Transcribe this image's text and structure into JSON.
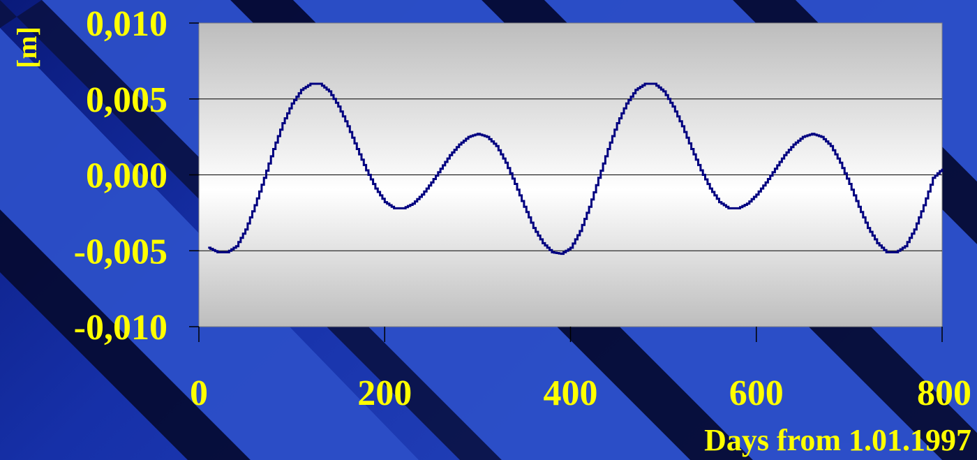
{
  "chart_data": {
    "type": "line",
    "title": "",
    "ylabel": "[m]",
    "xlabel": "Days from 1.01.1997",
    "xlim": [
      0,
      800
    ],
    "ylim": [
      -0.01,
      0.01
    ],
    "x_ticks": [
      0,
      200,
      400,
      600,
      800
    ],
    "x_tick_labels": [
      "0",
      "200",
      "400",
      "600",
      "800"
    ],
    "y_ticks": [
      0.01,
      0.005,
      0,
      -0.005,
      -0.01
    ],
    "y_tick_labels": [
      "0,010",
      "0,005",
      "0,000",
      "-0,005",
      "-0,010"
    ],
    "grid": true,
    "series": [
      {
        "x": [
          10,
          20,
          30,
          40,
          50,
          60,
          70,
          80,
          90,
          100,
          110,
          120,
          130,
          140,
          150,
          160,
          170,
          180,
          190,
          200,
          210,
          220,
          230,
          240,
          250,
          260,
          270,
          280,
          290,
          300,
          310,
          320,
          330,
          340,
          350,
          360,
          370,
          380,
          390,
          400,
          410,
          420,
          430,
          440,
          450,
          460,
          470,
          480,
          490,
          500,
          510,
          520,
          530,
          540,
          550,
          560,
          570,
          580,
          590,
          600,
          610,
          620,
          630,
          640,
          650,
          660,
          670,
          680,
          690,
          700,
          710,
          720,
          730,
          740,
          750,
          760,
          770,
          780,
          790,
          800
        ],
        "y": [
          -0.0048,
          -0.0051,
          -0.0051,
          -0.0047,
          -0.0036,
          -0.002,
          -0.0002,
          0.0017,
          0.0034,
          0.0047,
          0.0056,
          0.006,
          0.006,
          0.0055,
          0.0045,
          0.0032,
          0.0017,
          0.0003,
          -0.0009,
          -0.0018,
          -0.0022,
          -0.0022,
          -0.0019,
          -0.0013,
          -0.0005,
          0.0004,
          0.0013,
          0.002,
          0.0025,
          0.0027,
          0.0025,
          0.0019,
          0.0008,
          -0.0006,
          -0.0021,
          -0.0035,
          -0.0045,
          -0.0051,
          -0.0052,
          -0.0048,
          -0.0037,
          -0.0021,
          -0.0002,
          0.0017,
          0.0034,
          0.0047,
          0.0056,
          0.006,
          0.006,
          0.0055,
          0.0045,
          0.0032,
          0.0017,
          0.0003,
          -0.0009,
          -0.0018,
          -0.0022,
          -0.0022,
          -0.0019,
          -0.0013,
          -0.0005,
          0.0004,
          0.0013,
          0.002,
          0.0025,
          0.0027,
          0.0025,
          0.0019,
          0.0008,
          -0.0006,
          -0.0021,
          -0.0035,
          -0.0045,
          -0.0051,
          -0.0051,
          -0.0047,
          -0.0036,
          -0.002,
          -0.0002,
          0.0004
        ],
        "color": "#000080"
      }
    ],
    "colors": {
      "label_text": "#ffff00",
      "line": "#000080",
      "grid": "#000000",
      "plot_top": "#bdbdbd",
      "plot_middle": "#ffffff",
      "plot_bottom": "#bdbdbd"
    }
  }
}
